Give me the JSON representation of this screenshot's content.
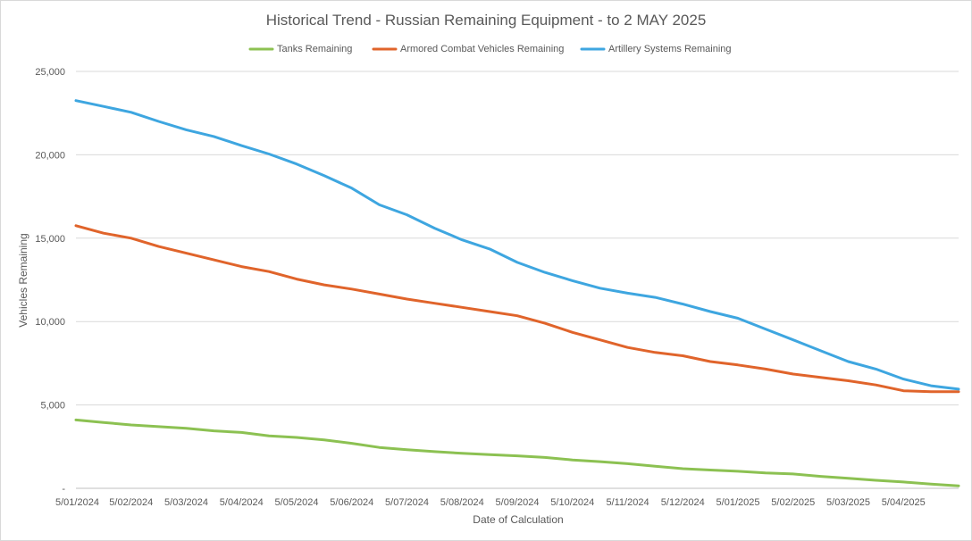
{
  "chart_data": {
    "type": "line",
    "title": "Historical Trend - Russian Remaining Equipment - to 2 MAY 2025",
    "xlabel": "Date of Calculation",
    "ylabel": "Vehicles Remaining",
    "ylim": [
      0,
      25000
    ],
    "yticks": [
      0,
      5000,
      10000,
      15000,
      20000,
      25000
    ],
    "ytick_labels": [
      "-",
      "5,000",
      "10,000",
      "15,000",
      "20,000",
      "25,000"
    ],
    "x_tick_labels": [
      "5/01/2024",
      "5/02/2024",
      "5/03/2024",
      "5/04/2024",
      "5/05/2024",
      "5/06/2024",
      "5/07/2024",
      "5/08/2024",
      "5/09/2024",
      "5/10/2024",
      "5/11/2024",
      "5/12/2024",
      "5/01/2025",
      "5/02/2025",
      "5/03/2025",
      "5/04/2025"
    ],
    "x_range_months": [
      0,
      16
    ],
    "grid": true,
    "legend_position": "top",
    "series": [
      {
        "name": "Tanks Remaining",
        "color": "#8cc152",
        "x": [
          0,
          0.5,
          1,
          1.5,
          2,
          2.5,
          3,
          3.5,
          4,
          4.5,
          5,
          5.5,
          6,
          6.5,
          7,
          7.5,
          8,
          8.5,
          9,
          9.5,
          10,
          10.5,
          11,
          11.5,
          12,
          12.5,
          13,
          13.5,
          14,
          14.5,
          15,
          15.5,
          16
        ],
        "values": [
          4100,
          3950,
          3800,
          3700,
          3600,
          3450,
          3350,
          3150,
          3050,
          2900,
          2700,
          2450,
          2320,
          2200,
          2100,
          2020,
          1950,
          1850,
          1700,
          1600,
          1480,
          1320,
          1180,
          1100,
          1020,
          920,
          860,
          720,
          600,
          480,
          380,
          250,
          150
        ]
      },
      {
        "name": "Armored Combat Vehicles Remaining",
        "color": "#e0642b",
        "x": [
          0,
          0.5,
          1,
          1.5,
          2,
          2.5,
          3,
          3.5,
          4,
          4.5,
          5,
          5.5,
          6,
          6.5,
          7,
          7.5,
          8,
          8.5,
          9,
          9.5,
          10,
          10.5,
          11,
          11.5,
          12,
          12.5,
          13,
          13.5,
          14,
          14.5,
          15,
          15.5,
          16
        ],
        "values": [
          15750,
          15300,
          15000,
          14500,
          14100,
          13700,
          13300,
          13000,
          12550,
          12200,
          11950,
          11650,
          11350,
          11100,
          10850,
          10600,
          10350,
          9900,
          9350,
          8900,
          8450,
          8150,
          7950,
          7600,
          7400,
          7150,
          6850,
          6650,
          6450,
          6200,
          5850,
          5800,
          5800
        ]
      },
      {
        "name": "Artillery Systems Remaining",
        "color": "#3ea6e0",
        "x": [
          0,
          0.5,
          1,
          1.5,
          2,
          2.5,
          3,
          3.5,
          4,
          4.5,
          5,
          5.5,
          6,
          6.5,
          7,
          7.5,
          8,
          8.5,
          9,
          9.5,
          10,
          10.5,
          11,
          11.5,
          12,
          12.5,
          13,
          13.5,
          14,
          14.5,
          15,
          15.5,
          16
        ],
        "values": [
          23250,
          22900,
          22550,
          22000,
          21500,
          21100,
          20550,
          20050,
          19450,
          18750,
          18000,
          17000,
          16400,
          15600,
          14900,
          14350,
          13550,
          12950,
          12450,
          12000,
          11700,
          11450,
          11050,
          10600,
          10200,
          9550,
          8900,
          8250,
          7600,
          7150,
          6550,
          6150,
          5950
        ]
      }
    ]
  }
}
